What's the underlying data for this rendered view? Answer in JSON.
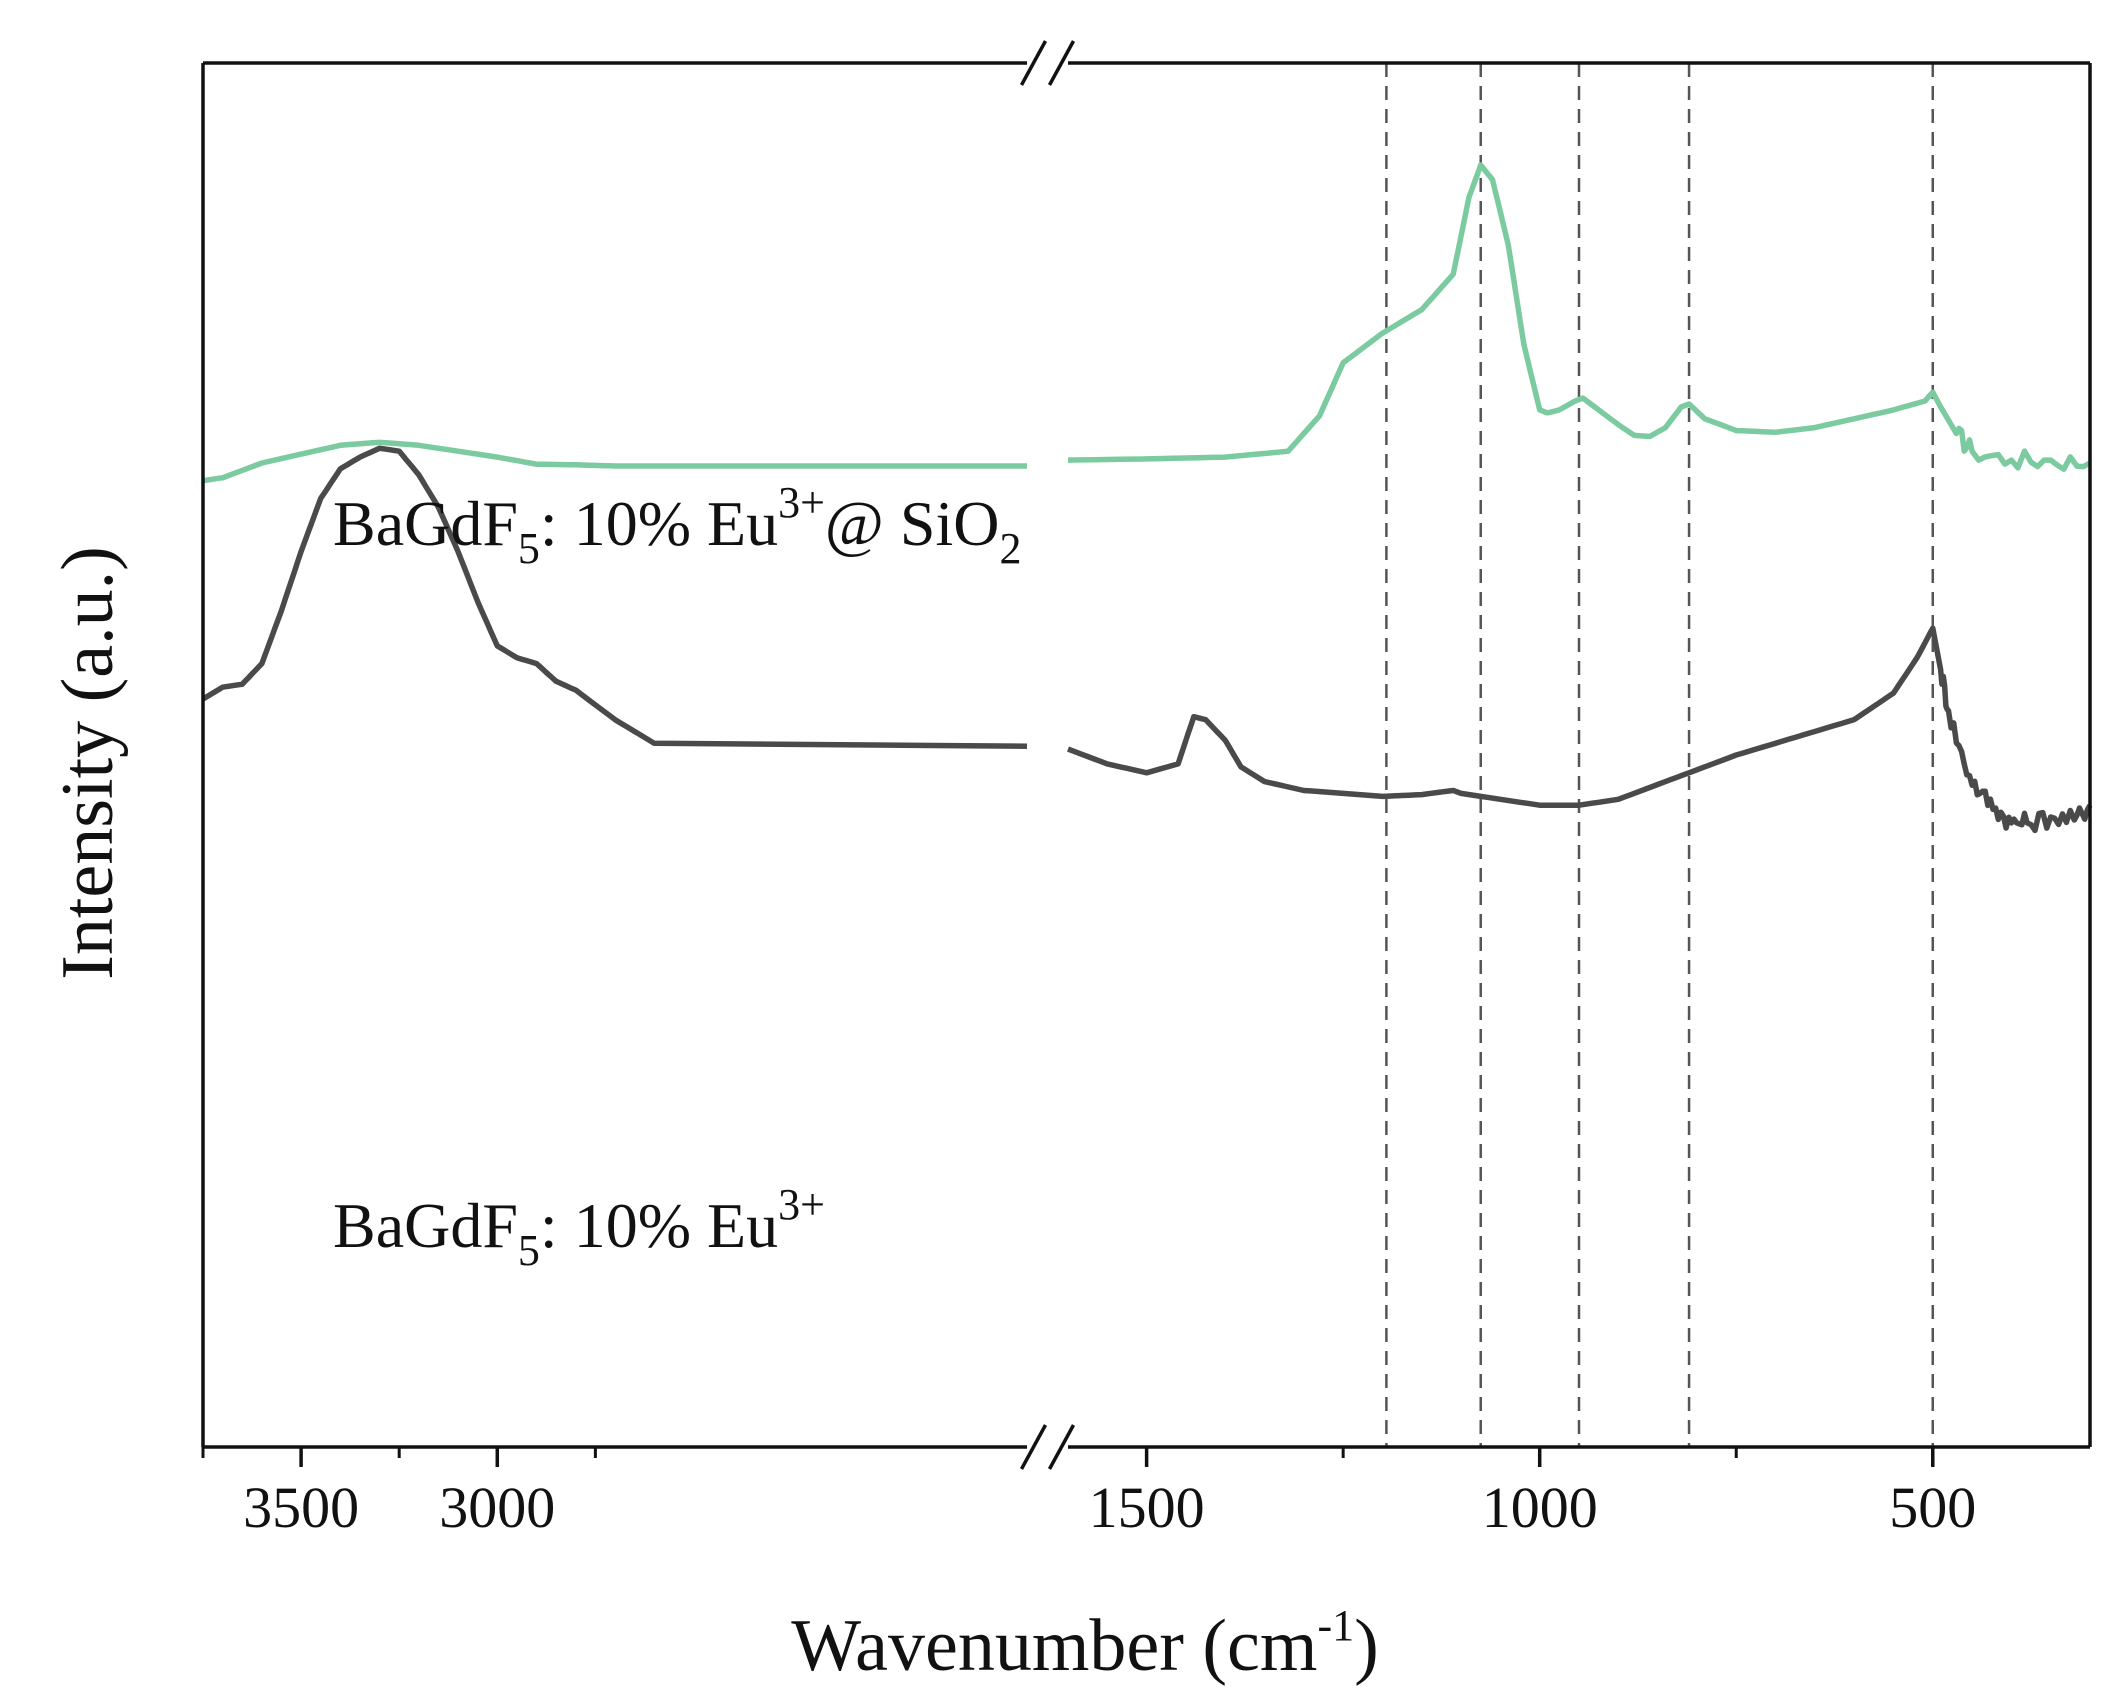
{
  "chart_data": {
    "type": "line",
    "title": "",
    "xlabel": {
      "text": "Wavenumber (cm",
      "sup": "-1",
      "close": ")"
    },
    "ylabel": "Intensity (a.u.)",
    "x_reversed": true,
    "x_break": {
      "between": [
        1650,
        1600
      ]
    },
    "x_segments": [
      {
        "range": [
          3750,
          1650
        ],
        "ticks": [
          3500,
          3000
        ]
      },
      {
        "range": [
          1600,
          300
        ],
        "ticks": [
          1500,
          1000,
          500
        ]
      }
    ],
    "tick_labels": [
      "3500",
      "3000",
      "1500",
      "1000",
      "500"
    ],
    "y_ticks_shown": false,
    "grid": false,
    "reference_lines_x": [
      1195,
      1075,
      950,
      810,
      500
    ],
    "colors": {
      "green": "#7ccba0",
      "gray": "#4a4a4a",
      "dash": "#555555"
    },
    "series": [
      {
        "label": {
          "main": "BaGdF",
          "sub": "5",
          "text": ": 10% Eu",
          "sup": "3+",
          "tail": "@ SiO",
          "tail_sub": "2"
        },
        "color": "#7ccba0",
        "noise_below_x": 470,
        "points": [
          [
            3750,
            0.27
          ],
          [
            3700,
            0.275
          ],
          [
            3600,
            0.3
          ],
          [
            3500,
            0.315
          ],
          [
            3400,
            0.33
          ],
          [
            3300,
            0.335
          ],
          [
            3200,
            0.33
          ],
          [
            3100,
            0.32
          ],
          [
            3000,
            0.31
          ],
          [
            2900,
            0.298
          ],
          [
            2800,
            0.297
          ],
          [
            2700,
            0.295
          ],
          [
            1650,
            0.295
          ],
          [
            1600,
            0.305
          ],
          [
            1500,
            0.307
          ],
          [
            1400,
            0.31
          ],
          [
            1320,
            0.32
          ],
          [
            1280,
            0.38
          ],
          [
            1250,
            0.47
          ],
          [
            1200,
            0.52
          ],
          [
            1150,
            0.56
          ],
          [
            1110,
            0.62
          ],
          [
            1090,
            0.75
          ],
          [
            1075,
            0.805
          ],
          [
            1060,
            0.78
          ],
          [
            1040,
            0.67
          ],
          [
            1020,
            0.5
          ],
          [
            1000,
            0.39
          ],
          [
            990,
            0.385
          ],
          [
            975,
            0.39
          ],
          [
            955,
            0.405
          ],
          [
            945,
            0.41
          ],
          [
            930,
            0.395
          ],
          [
            900,
            0.365
          ],
          [
            880,
            0.347
          ],
          [
            860,
            0.345
          ],
          [
            840,
            0.36
          ],
          [
            820,
            0.395
          ],
          [
            810,
            0.4
          ],
          [
            790,
            0.375
          ],
          [
            750,
            0.355
          ],
          [
            700,
            0.352
          ],
          [
            650,
            0.36
          ],
          [
            600,
            0.375
          ],
          [
            550,
            0.39
          ],
          [
            510,
            0.405
          ],
          [
            500,
            0.42
          ],
          [
            490,
            0.395
          ],
          [
            470,
            0.35
          ],
          [
            450,
            0.32
          ],
          [
            400,
            0.305
          ],
          [
            350,
            0.305
          ],
          [
            300,
            0.3
          ]
        ]
      },
      {
        "label": {
          "main": "BaGdF",
          "sub": "5",
          "text": ": 10% Eu",
          "sup": "3+"
        },
        "color": "#4a4a4a",
        "noise_below_x": 490,
        "points": [
          [
            3750,
            -0.1
          ],
          [
            3700,
            -0.08
          ],
          [
            3650,
            -0.075
          ],
          [
            3600,
            -0.04
          ],
          [
            3550,
            0.05
          ],
          [
            3500,
            0.15
          ],
          [
            3450,
            0.24
          ],
          [
            3400,
            0.29
          ],
          [
            3350,
            0.31
          ],
          [
            3300,
            0.325
          ],
          [
            3250,
            0.32
          ],
          [
            3200,
            0.28
          ],
          [
            3150,
            0.225
          ],
          [
            3100,
            0.15
          ],
          [
            3050,
            0.065
          ],
          [
            3000,
            -0.01
          ],
          [
            2950,
            -0.03
          ],
          [
            2900,
            -0.04
          ],
          [
            2850,
            -0.07
          ],
          [
            2800,
            -0.085
          ],
          [
            2700,
            -0.135
          ],
          [
            2600,
            -0.175
          ],
          [
            1650,
            -0.18
          ],
          [
            1600,
            -0.185
          ],
          [
            1550,
            -0.21
          ],
          [
            1500,
            -0.225
          ],
          [
            1460,
            -0.21
          ],
          [
            1440,
            -0.13
          ],
          [
            1425,
            -0.135
          ],
          [
            1400,
            -0.17
          ],
          [
            1380,
            -0.215
          ],
          [
            1350,
            -0.24
          ],
          [
            1300,
            -0.255
          ],
          [
            1250,
            -0.26
          ],
          [
            1200,
            -0.265
          ],
          [
            1150,
            -0.262
          ],
          [
            1110,
            -0.255
          ],
          [
            1100,
            -0.26
          ],
          [
            1050,
            -0.27
          ],
          [
            1000,
            -0.28
          ],
          [
            950,
            -0.28
          ],
          [
            900,
            -0.27
          ],
          [
            850,
            -0.245
          ],
          [
            800,
            -0.22
          ],
          [
            750,
            -0.195
          ],
          [
            700,
            -0.175
          ],
          [
            650,
            -0.155
          ],
          [
            600,
            -0.135
          ],
          [
            550,
            -0.09
          ],
          [
            520,
            -0.03
          ],
          [
            500,
            0.02
          ],
          [
            490,
            -0.05
          ],
          [
            480,
            -0.12
          ],
          [
            460,
            -0.21
          ],
          [
            440,
            -0.26
          ],
          [
            420,
            -0.285
          ],
          [
            400,
            -0.31
          ],
          [
            380,
            -0.31
          ],
          [
            350,
            -0.3
          ],
          [
            320,
            -0.305
          ],
          [
            300,
            -0.28
          ]
        ]
      }
    ]
  }
}
